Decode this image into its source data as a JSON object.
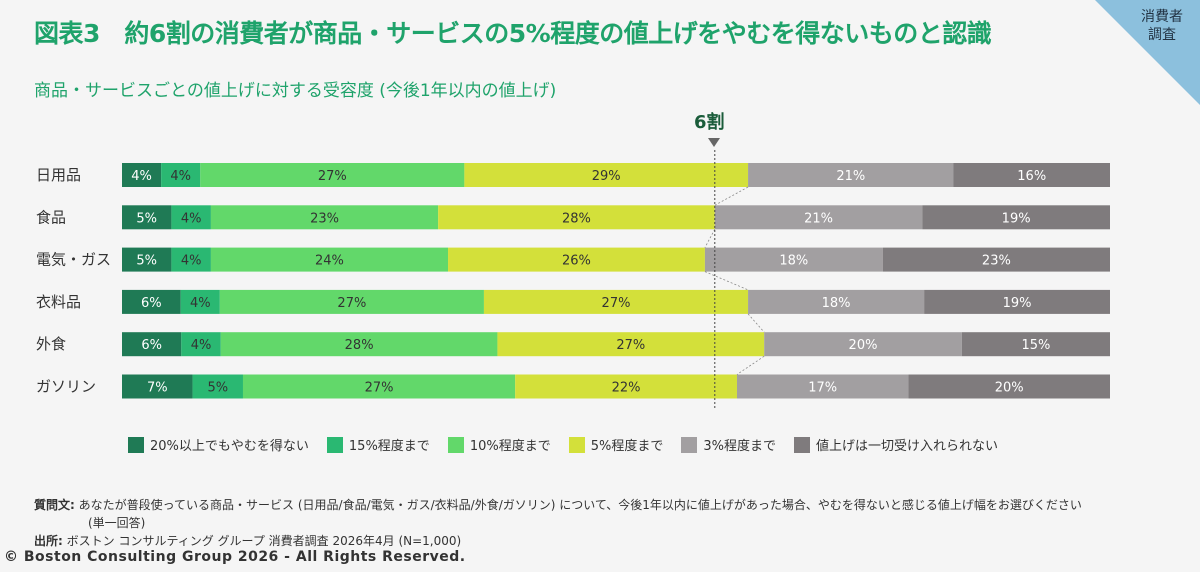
{
  "header": {
    "title": "図表3　約6割の消費者が商品・サービスの5%程度の値上げをやむを得ないものと認識",
    "corner_label_line1": "消費者",
    "corner_label_line2": "調査",
    "subtitle": "商品・サービスごとの値上げに対する受容度 (今後1年以内の値上げ)"
  },
  "marker": {
    "label": "6割"
  },
  "colors": [
    "#1f7a55",
    "#2ab872",
    "#62d86a",
    "#d3e03a",
    "#a29fa1",
    "#7f7b7d"
  ],
  "chart_data": {
    "type": "bar",
    "orientation": "horizontal",
    "stacked": true,
    "categories": [
      "日用品",
      "食品",
      "電気・ガス",
      "衣料品",
      "外食",
      "ガソリン"
    ],
    "series": [
      {
        "name": "20%以上でもやむを得ない",
        "values": [
          4,
          5,
          5,
          6,
          6,
          7
        ],
        "labels": [
          "4%",
          "5%",
          "5%",
          "6%",
          "6%",
          "7%"
        ]
      },
      {
        "name": "15%程度まで",
        "values": [
          4,
          4,
          4,
          4,
          4,
          5
        ],
        "labels": [
          "4%",
          "4%",
          "4%",
          "4%",
          "4%",
          "5%"
        ]
      },
      {
        "name": "10%程度まで",
        "values": [
          27,
          23,
          24,
          27,
          28,
          27
        ],
        "labels": [
          "27%",
          "23%",
          "24%",
          "27%",
          "28%",
          "27%"
        ]
      },
      {
        "name": "5%程度まで",
        "values": [
          29,
          28,
          26,
          27,
          27,
          22
        ],
        "labels": [
          "29%",
          "28%",
          "26%",
          "27%",
          "27%",
          "22%"
        ]
      },
      {
        "name": "3%程度まで",
        "values": [
          21,
          21,
          18,
          18,
          20,
          17
        ],
        "labels": [
          "21%",
          "21%",
          "18%",
          "18%",
          "20%",
          "17%"
        ]
      },
      {
        "name": "値上げは一切受け入れられない",
        "values": [
          16,
          19,
          23,
          19,
          15,
          20
        ],
        "labels": [
          "16%",
          "19%",
          "23%",
          "19%",
          "15%",
          "20%"
        ]
      }
    ],
    "xlim": [
      0,
      100
    ],
    "reference_line": 60
  },
  "notes": {
    "question_label": "質問文:",
    "question_text": "あなたが普段使っている商品・サービス (日用品/食品/電気・ガス/衣料品/外食/ガソリン) について、今後1年以内に値上げがあった場合、やむを得ないと感じる値上げ幅をお選びください",
    "question_text2": "(単一回答)",
    "source_label": "出所:",
    "source_text": "ボストン コンサルティング グループ 消費者調査 2026年4月 (N=1,000)"
  },
  "copyright": "© Boston Consulting Group 2026 - All Rights Reserved."
}
